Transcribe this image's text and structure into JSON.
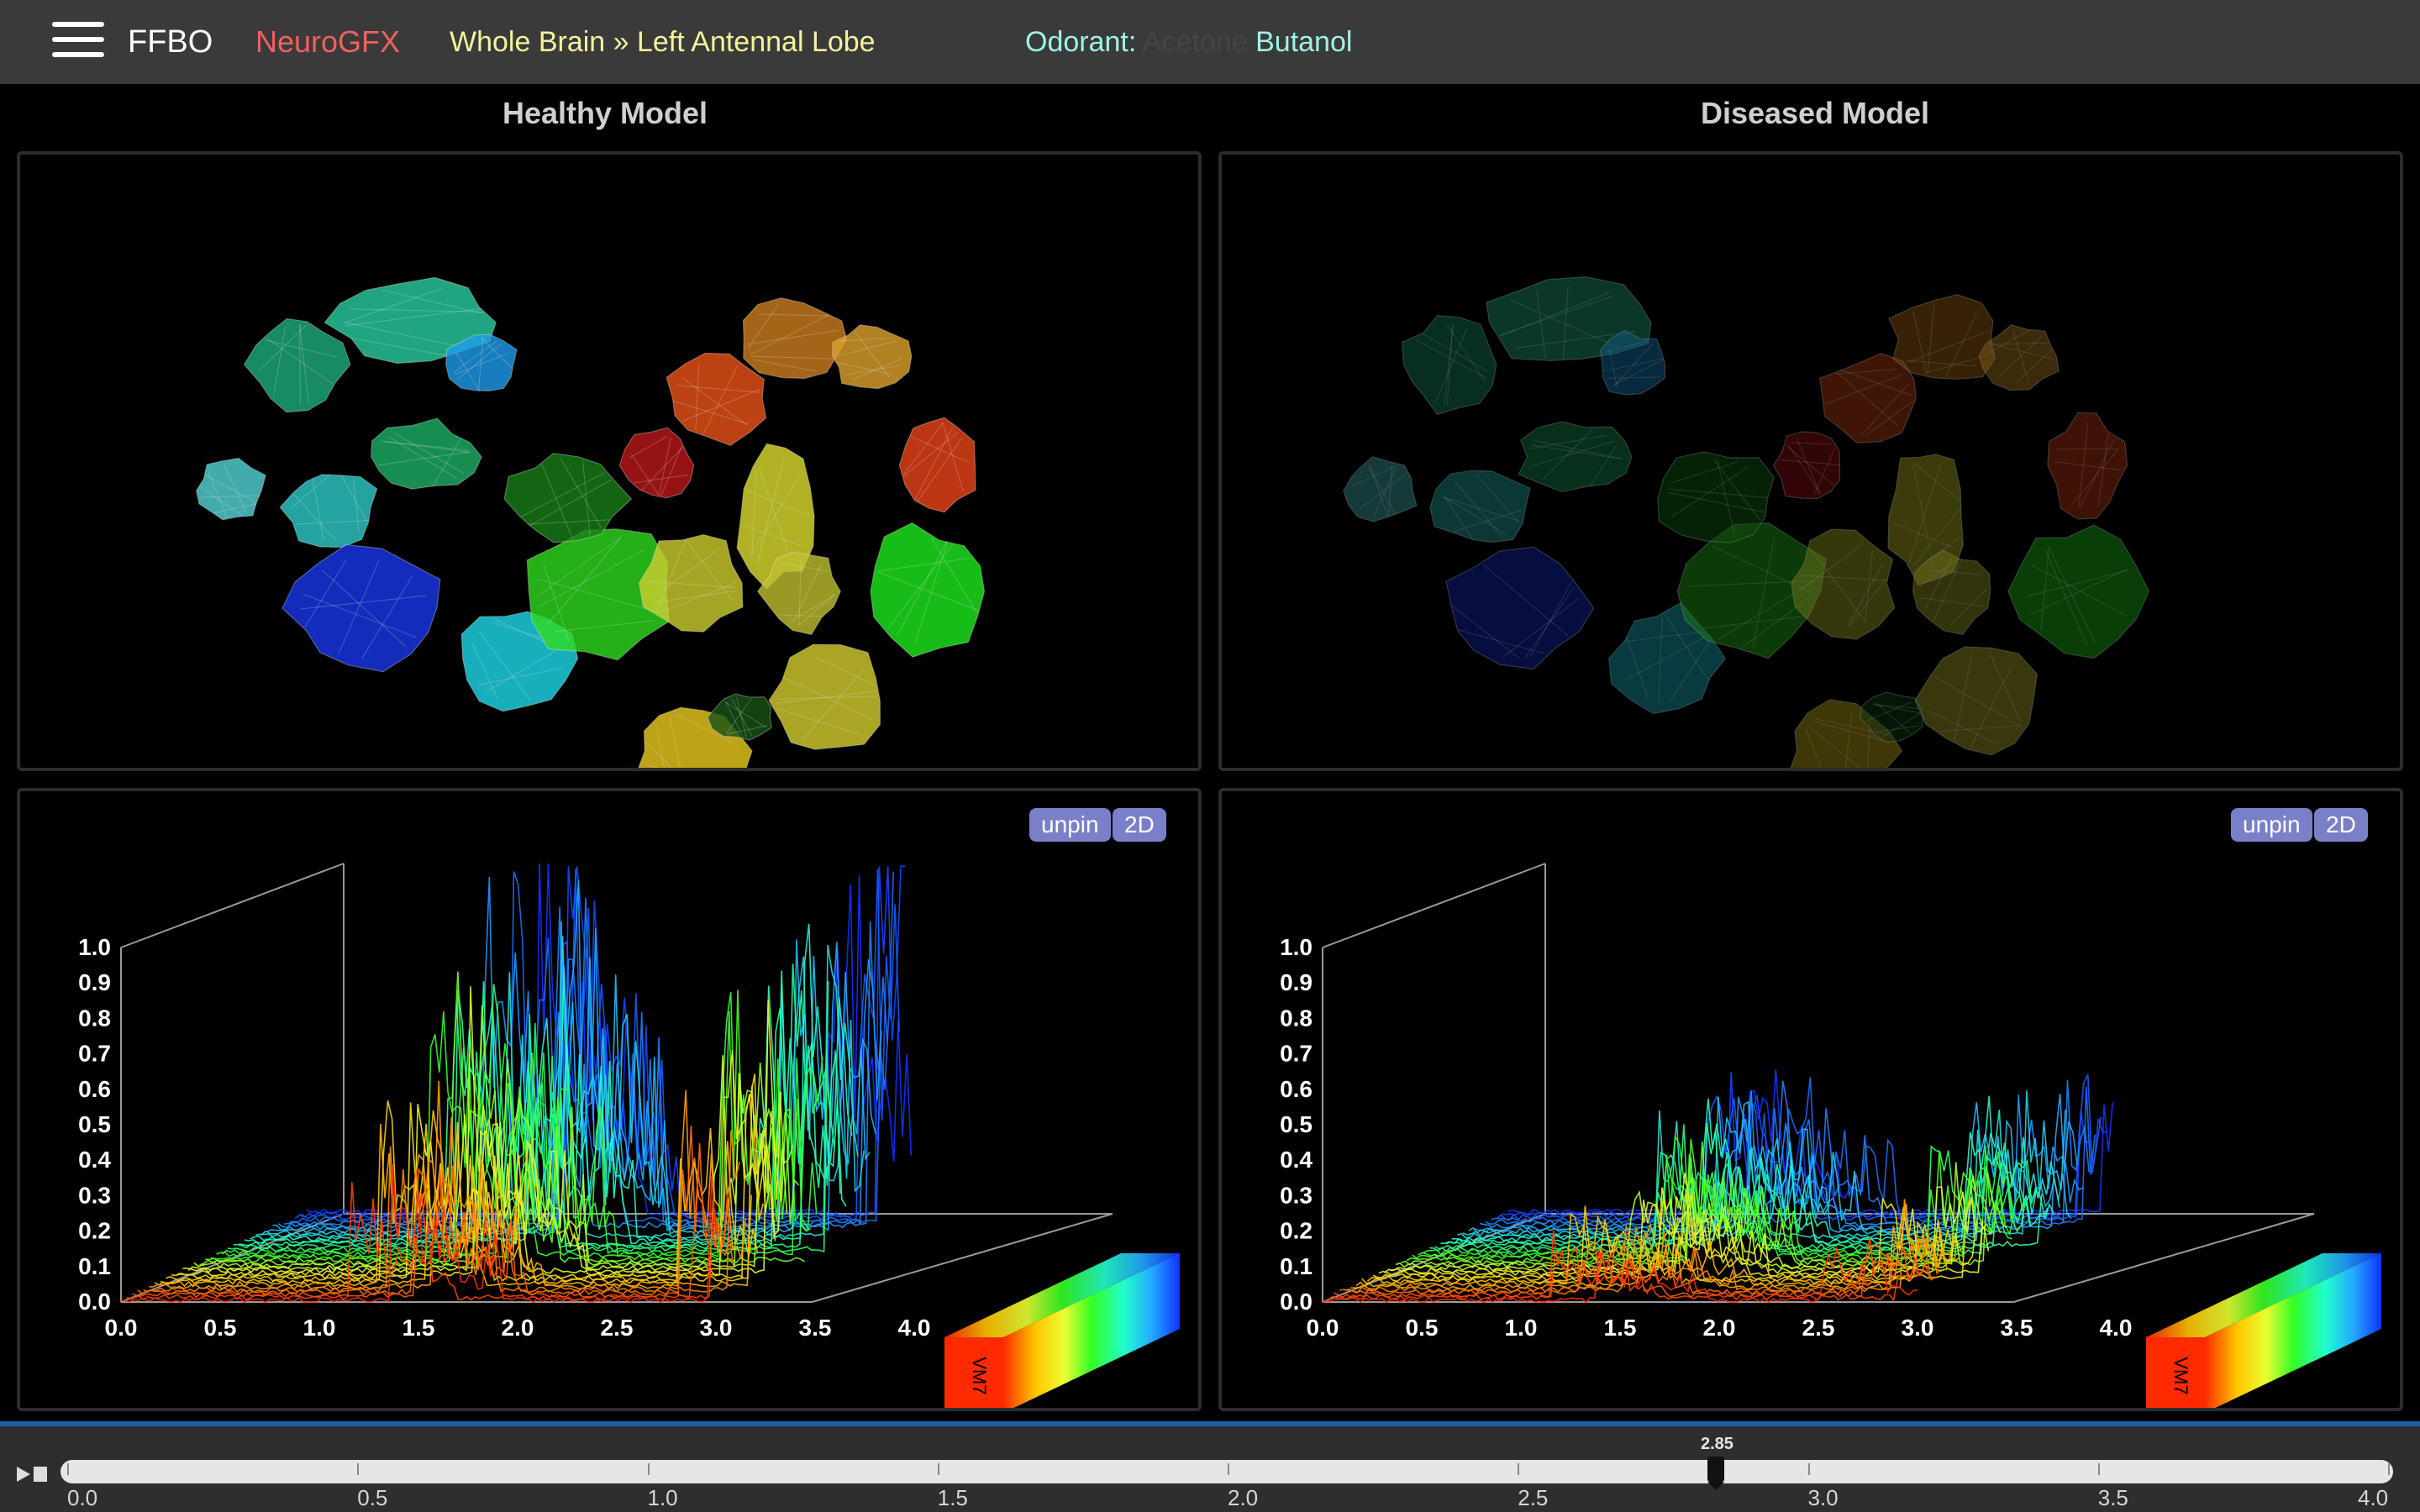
{
  "topbar": {
    "brand": "FFBO",
    "app": "NeuroGFX",
    "breadcrumb": "Whole Brain » Left Antennal Lobe",
    "odorant_label": "Odorant:",
    "odorant_inactive": "Acetone",
    "odorant_active": "Butanol"
  },
  "panels": {
    "healthy_title": "Healthy Model",
    "diseased_title": "Diseased Model"
  },
  "controls": {
    "unpin": "unpin",
    "twod": "2D"
  },
  "colorbar_label": "VM7",
  "timeline": {
    "current": "2.85",
    "labels": [
      "0.0",
      "0.5",
      "1.0",
      "1.5",
      "2.0",
      "2.5",
      "3.0",
      "3.5",
      "4.0"
    ]
  },
  "chart_data": [
    {
      "type": "line",
      "title": "Healthy Model",
      "x_ticks": [
        "0.0",
        "0.5",
        "1.0",
        "1.5",
        "2.0",
        "2.5",
        "3.0",
        "3.5",
        "4.0"
      ],
      "y_ticks": [
        "0.0",
        "0.1",
        "0.2",
        "0.3",
        "0.4",
        "0.5",
        "0.6",
        "0.7",
        "0.8",
        "0.9",
        "1.0"
      ],
      "xlim": [
        0,
        4
      ],
      "ylim": [
        0,
        1
      ],
      "peak_level": 1.0,
      "colorbar_label": "VM7"
    },
    {
      "type": "line",
      "title": "Diseased Model",
      "x_ticks": [
        "0.0",
        "0.5",
        "1.0",
        "1.5",
        "2.0",
        "2.5",
        "3.0",
        "3.5",
        "4.0"
      ],
      "y_ticks": [
        "0.0",
        "0.1",
        "0.2",
        "0.3",
        "0.4",
        "0.5",
        "0.6",
        "0.7",
        "0.8",
        "0.9",
        "1.0"
      ],
      "xlim": [
        0,
        4
      ],
      "ylim": [
        0,
        1
      ],
      "peak_level": 0.42,
      "colorbar_label": "VM7"
    }
  ]
}
